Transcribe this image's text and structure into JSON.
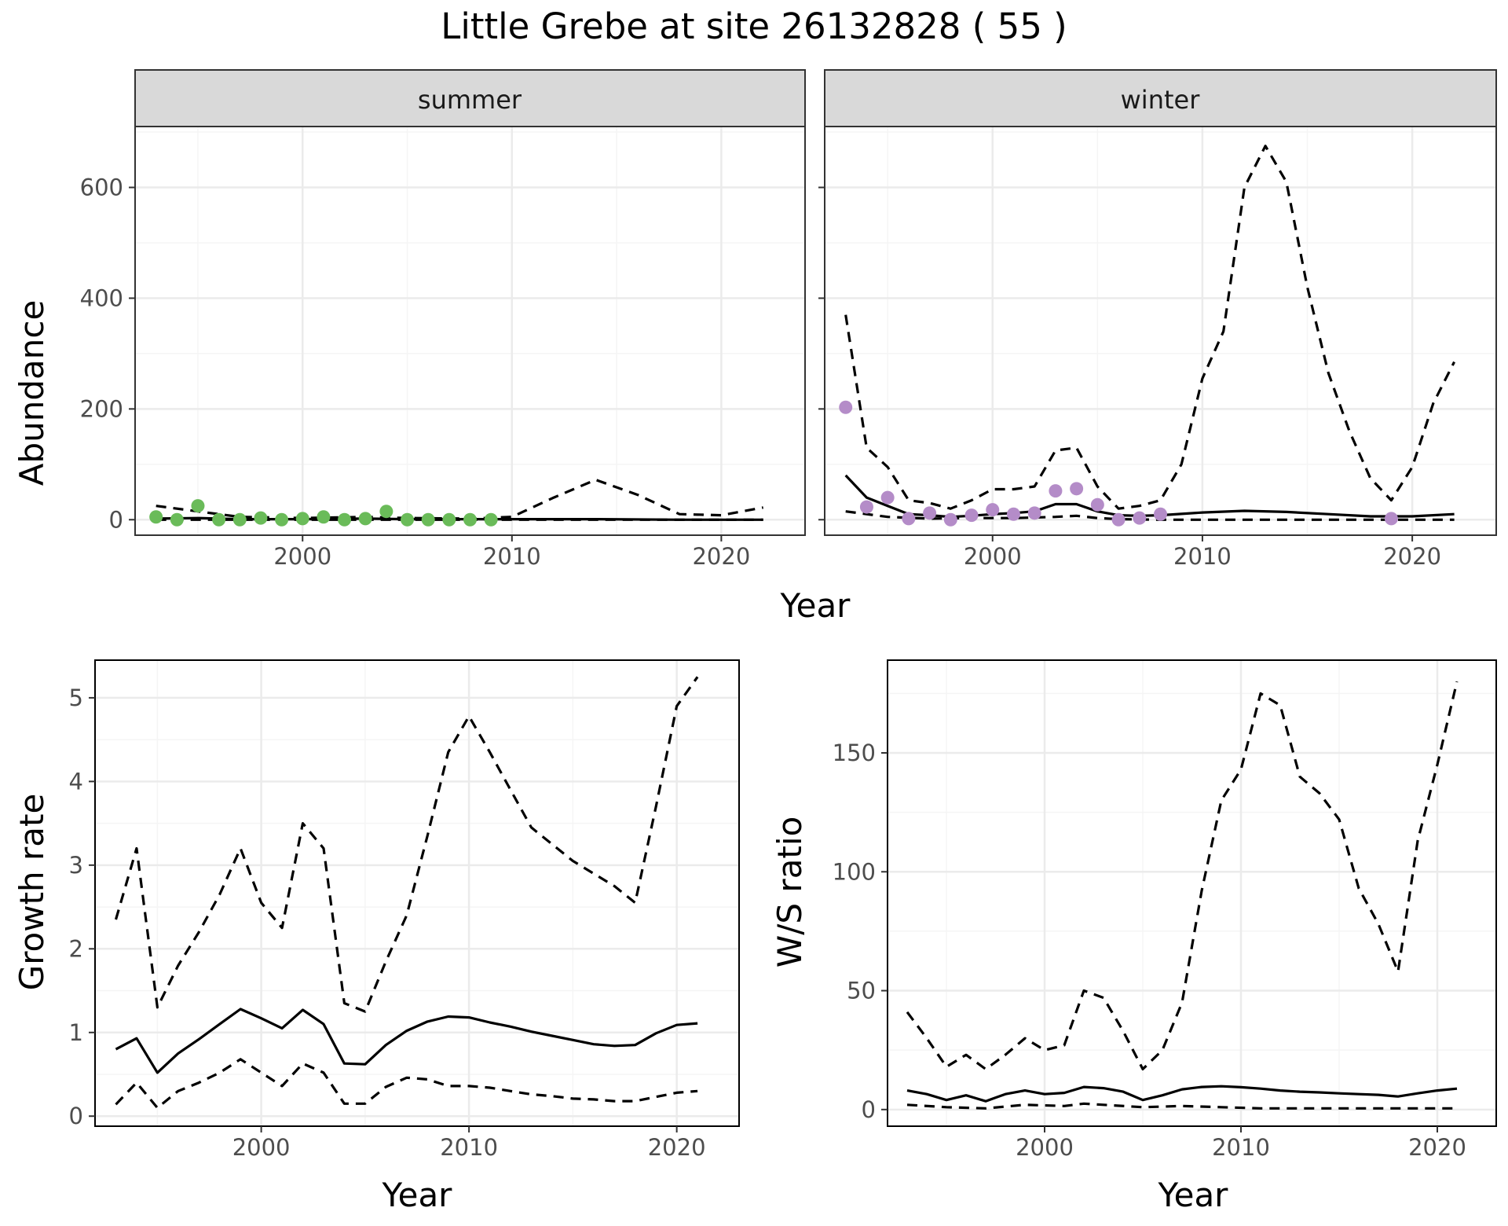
{
  "title": "Little Grebe at site 26132828 ( 55 )",
  "colors": {
    "summer_points": "#6ABB59",
    "winter_points": "#B48CC8",
    "line": "#000000",
    "strip_fill": "#D9D9D9",
    "grid_major": "#EBEBEB",
    "grid_minor": "#F5F5F5"
  },
  "chart_data": [
    {
      "id": "summer",
      "type": "line+scatter",
      "strip": "summer",
      "xlabel": "",
      "ylabel": "Abundance",
      "xlim": [
        1992,
        2024
      ],
      "ylim": [
        -28,
        710
      ],
      "xticks": [
        2000,
        2010,
        2020
      ],
      "yticks": [
        0,
        200,
        400,
        600
      ],
      "grid": true,
      "points": {
        "x": [
          1993,
          1994,
          1995,
          1996,
          1997,
          1998,
          1999,
          2000,
          2001,
          2002,
          2003,
          2004,
          2005,
          2006,
          2007,
          2008,
          2009
        ],
        "y": [
          5,
          0,
          25,
          0,
          0,
          3,
          0,
          2,
          5,
          0,
          2,
          15,
          0,
          0,
          0,
          0,
          0
        ]
      },
      "series": [
        {
          "style": "solid",
          "x": [
            1993,
            1995,
            1997,
            2000,
            2003,
            2005,
            2008,
            2010,
            2014,
            2018,
            2022
          ],
          "y": [
            2,
            3,
            1,
            1,
            2,
            1,
            1,
            1,
            1,
            0,
            0
          ]
        },
        {
          "style": "dashed",
          "x": [
            1993,
            1995,
            1997,
            2000,
            2003,
            2005,
            2008,
            2010,
            2012,
            2014,
            2016,
            2018,
            2020,
            2022
          ],
          "y": [
            25,
            15,
            5,
            3,
            5,
            3,
            2,
            5,
            40,
            72,
            45,
            10,
            8,
            22
          ]
        },
        {
          "style": "dashed",
          "x": [
            1993,
            2000,
            2010,
            2022
          ],
          "y": [
            0,
            0,
            0,
            0
          ]
        }
      ]
    },
    {
      "id": "winter",
      "type": "line+scatter",
      "strip": "winter",
      "xlabel": "",
      "ylabel": "",
      "xlim": [
        1992,
        2024
      ],
      "ylim": [
        -28,
        710
      ],
      "xticks": [
        2000,
        2010,
        2020
      ],
      "yticks": [
        0,
        200,
        400,
        600
      ],
      "grid": true,
      "points": {
        "x": [
          1993,
          1994,
          1995,
          1996,
          1997,
          1998,
          1999,
          2000,
          2001,
          2002,
          2003,
          2004,
          2005,
          2006,
          2007,
          2008,
          2019
        ],
        "y": [
          203,
          23,
          40,
          2,
          12,
          0,
          8,
          18,
          10,
          12,
          52,
          56,
          27,
          0,
          3,
          10,
          2
        ]
      },
      "series": [
        {
          "style": "solid",
          "x": [
            1993,
            1994,
            1995,
            1996,
            1997,
            1998,
            1999,
            2000,
            2001,
            2002,
            2003,
            2004,
            2005,
            2006,
            2007,
            2008,
            2010,
            2012,
            2014,
            2016,
            2018,
            2020,
            2022
          ],
          "y": [
            80,
            40,
            25,
            10,
            8,
            5,
            7,
            10,
            12,
            15,
            28,
            28,
            15,
            8,
            7,
            8,
            13,
            16,
            14,
            10,
            6,
            6,
            10
          ]
        },
        {
          "style": "dashed",
          "x": [
            1993,
            1994,
            1995,
            1996,
            1997,
            1998,
            1999,
            2000,
            2001,
            2002,
            2003,
            2004,
            2005,
            2006,
            2007,
            2008,
            2009,
            2010,
            2011,
            2012,
            2013,
            2014,
            2015,
            2016,
            2017,
            2018,
            2019,
            2020,
            2021,
            2022
          ],
          "y": [
            370,
            130,
            95,
            35,
            30,
            20,
            35,
            55,
            55,
            60,
            125,
            130,
            60,
            20,
            25,
            35,
            100,
            255,
            340,
            600,
            675,
            610,
            420,
            265,
            160,
            75,
            35,
            95,
            210,
            285
          ]
        },
        {
          "style": "dashed",
          "x": [
            1993,
            1995,
            1997,
            1999,
            2001,
            2003,
            2004,
            2005,
            2006,
            2008,
            2010,
            2014,
            2018,
            2022
          ],
          "y": [
            15,
            5,
            2,
            3,
            3,
            5,
            7,
            3,
            1,
            0,
            0,
            0,
            0,
            0
          ]
        }
      ]
    },
    {
      "id": "growth",
      "type": "line",
      "xlabel": "Year",
      "ylabel": "Growth rate",
      "xlim": [
        1992,
        2023
      ],
      "ylim": [
        -0.12,
        5.45
      ],
      "xticks": [
        2000,
        2010,
        2020
      ],
      "yticks": [
        0,
        1,
        2,
        3,
        4,
        5
      ],
      "grid": true,
      "series": [
        {
          "style": "solid",
          "x": [
            1993,
            1994,
            1995,
            1996,
            1997,
            1998,
            1999,
            2000,
            2001,
            2002,
            2003,
            2004,
            2005,
            2006,
            2007,
            2008,
            2009,
            2010,
            2011,
            2012,
            2013,
            2014,
            2015,
            2016,
            2017,
            2018,
            2019,
            2020,
            2021
          ],
          "y": [
            0.8,
            0.93,
            0.52,
            0.75,
            0.92,
            1.1,
            1.28,
            1.17,
            1.05,
            1.27,
            1.1,
            0.63,
            0.62,
            0.85,
            1.02,
            1.13,
            1.19,
            1.18,
            1.12,
            1.07,
            1.01,
            0.96,
            0.91,
            0.86,
            0.84,
            0.85,
            0.99,
            1.09,
            1.11
          ]
        },
        {
          "style": "dashed",
          "x": [
            1993,
            1994,
            1995,
            1996,
            1997,
            1998,
            1999,
            2000,
            2001,
            2002,
            2003,
            2004,
            2005,
            2006,
            2007,
            2008,
            2009,
            2010,
            2011,
            2012,
            2013,
            2014,
            2015,
            2016,
            2017,
            2018,
            2019,
            2020,
            2021
          ],
          "y": [
            2.35,
            3.2,
            1.3,
            1.8,
            2.2,
            2.65,
            3.2,
            2.55,
            2.25,
            3.5,
            3.2,
            1.35,
            1.25,
            1.85,
            2.4,
            3.35,
            4.35,
            4.78,
            4.35,
            3.9,
            3.45,
            3.25,
            3.05,
            2.9,
            2.75,
            2.55,
            3.7,
            4.9,
            5.25
          ]
        },
        {
          "style": "dashed",
          "x": [
            1993,
            1994,
            1995,
            1996,
            1997,
            1998,
            1999,
            2000,
            2001,
            2002,
            2003,
            2004,
            2005,
            2006,
            2007,
            2008,
            2009,
            2010,
            2011,
            2012,
            2013,
            2014,
            2015,
            2016,
            2017,
            2018,
            2019,
            2020,
            2021
          ],
          "y": [
            0.14,
            0.4,
            0.1,
            0.3,
            0.4,
            0.52,
            0.68,
            0.52,
            0.36,
            0.63,
            0.52,
            0.15,
            0.15,
            0.35,
            0.46,
            0.44,
            0.36,
            0.36,
            0.34,
            0.3,
            0.26,
            0.24,
            0.21,
            0.2,
            0.18,
            0.18,
            0.23,
            0.28,
            0.3
          ]
        }
      ]
    },
    {
      "id": "ws_ratio",
      "type": "line",
      "xlabel": "Year",
      "ylabel": "W/S ratio",
      "xlim": [
        1992,
        2023
      ],
      "ylim": [
        -7,
        189
      ],
      "xticks": [
        2000,
        2010,
        2020
      ],
      "yticks": [
        0,
        50,
        100,
        150
      ],
      "grid": true,
      "series": [
        {
          "style": "solid",
          "x": [
            1993,
            1994,
            1995,
            1996,
            1997,
            1998,
            1999,
            2000,
            2001,
            2002,
            2003,
            2004,
            2005,
            2006,
            2007,
            2008,
            2009,
            2010,
            2011,
            2012,
            2013,
            2014,
            2015,
            2016,
            2017,
            2018,
            2019,
            2020,
            2021
          ],
          "y": [
            8,
            6.5,
            4,
            6,
            3.5,
            6.5,
            8,
            6.5,
            7,
            9.5,
            9,
            7.5,
            4,
            6,
            8.5,
            9.5,
            9.8,
            9.4,
            8.8,
            8,
            7.5,
            7.2,
            6.8,
            6.5,
            6.2,
            5.5,
            6.8,
            8,
            8.8
          ]
        },
        {
          "style": "dashed",
          "x": [
            1993,
            1994,
            1995,
            1996,
            1997,
            1998,
            1999,
            2000,
            2001,
            2002,
            2003,
            2004,
            2005,
            2006,
            2007,
            2008,
            2009,
            2010,
            2011,
            2012,
            2013,
            2014,
            2015,
            2016,
            2017,
            2018,
            2019,
            2020,
            2021
          ],
          "y": [
            41,
            30,
            18,
            23,
            17,
            23,
            30,
            25,
            27,
            50,
            47,
            33,
            17,
            25,
            45,
            92,
            130,
            143,
            175,
            170,
            140,
            133,
            122,
            93,
            78,
            58,
            113,
            145,
            180
          ]
        },
        {
          "style": "dashed",
          "x": [
            1993,
            1995,
            1997,
            1999,
            2001,
            2002,
            2003,
            2005,
            2007,
            2009,
            2011,
            2015,
            2018,
            2021
          ],
          "y": [
            2,
            1,
            0.5,
            2,
            1.5,
            2.5,
            2,
            1,
            1.5,
            1,
            0.5,
            0.5,
            0.5,
            0.5
          ]
        }
      ]
    }
  ]
}
